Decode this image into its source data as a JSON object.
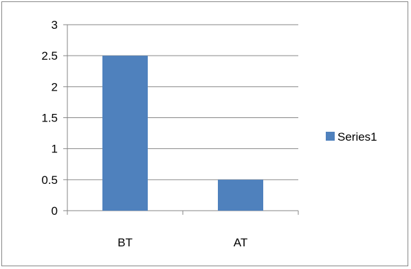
{
  "chart_data": {
    "type": "bar",
    "categories": [
      "BT",
      "AT"
    ],
    "series": [
      {
        "name": "Series1",
        "values": [
          2.5,
          0.5
        ],
        "color": "#4F81BD"
      }
    ],
    "ylim": [
      0,
      3
    ],
    "yticks": [
      "0",
      "0.5",
      "1",
      "1.5",
      "2",
      "2.5",
      "3"
    ],
    "grid": true,
    "legend": "right",
    "title": "",
    "xlabel": "",
    "ylabel": ""
  }
}
